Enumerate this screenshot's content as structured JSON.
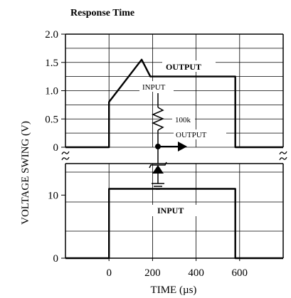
{
  "chart_data": {
    "type": "line",
    "title": "Response Time",
    "xlabel": "TIME (µs)",
    "ylabel": "VOLTAGE SWING (V)",
    "x_ticks": [
      "0",
      "200",
      "400",
      "600"
    ],
    "xlim": [
      -200,
      800
    ],
    "grid": true,
    "panels": [
      {
        "name": "upper",
        "ylim": [
          0,
          2.0
        ],
        "y_ticks": [
          "2.0",
          "1.5",
          "1.0",
          "0.5",
          "0"
        ],
        "y_values": [
          2.0,
          1.5,
          1.0,
          0.5,
          0
        ],
        "series": [
          {
            "name": "OUTPUT",
            "x": [
              -200,
              0,
              0,
              150,
              190,
              580,
              580,
              800
            ],
            "y": [
              0,
              0,
              0.8,
              1.55,
              1.25,
              1.25,
              0,
              0
            ]
          }
        ]
      },
      {
        "name": "lower",
        "ylim": [
          0,
          15
        ],
        "y_ticks": [
          "10",
          "0"
        ],
        "y_values": [
          10,
          0
        ],
        "series": [
          {
            "name": "INPUT",
            "x": [
              -200,
              0,
              0,
              580,
              580,
              800
            ],
            "y": [
              0,
              0,
              11,
              11,
              0,
              0
            ]
          }
        ]
      }
    ],
    "annotations": {
      "output_label": "OUTPUT",
      "input_label": "INPUT",
      "circuit_input": "INPUT",
      "circuit_resistor": "100k",
      "circuit_output": "OUTPUT"
    }
  }
}
